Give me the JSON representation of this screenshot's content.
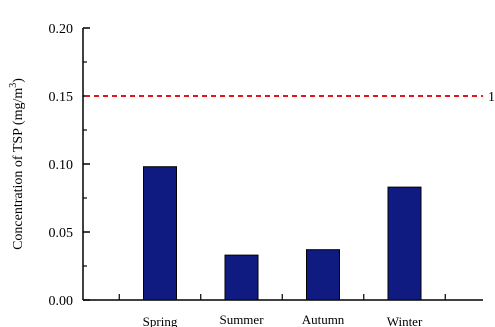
{
  "chart_data": {
    "type": "bar",
    "ylabel": "Concentration of TSP (mg/m3)",
    "ylabel_main": "Concentration of TSP (mg/m",
    "ylabel_superscript": "3",
    "ylabel_close": ")",
    "ylim": [
      0,
      0.2
    ],
    "yticks": [
      0.0,
      0.05,
      0.1,
      0.15,
      0.2
    ],
    "ytick_labels": [
      "0.00",
      "0.05",
      "0.10",
      "0.15",
      "0.20"
    ],
    "categories": [
      "Spring",
      "Summer",
      "Autumn",
      "Winter"
    ],
    "values": [
      0.098,
      0.033,
      0.037,
      0.083
    ],
    "bar_color": "#0f1b80",
    "grid": false,
    "reference_line": {
      "value": 0.15,
      "label": "1",
      "color": "#e0161b",
      "style": "dashed"
    }
  }
}
